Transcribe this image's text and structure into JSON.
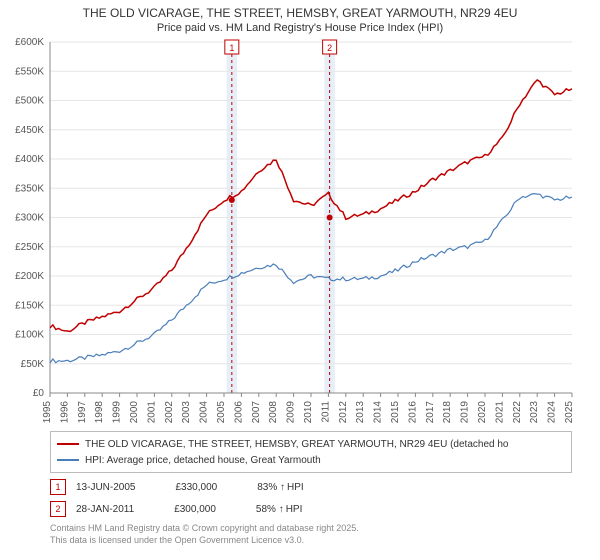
{
  "title_line1": "THE OLD VICARAGE, THE STREET, HEMSBY, GREAT YARMOUTH, NR29 4EU",
  "title_line2": "Price paid vs. HM Land Registry's House Price Index (HPI)",
  "chart": {
    "type": "line",
    "background_color": "#ffffff",
    "grid_color": "#e6e6e6",
    "axis_color": "#888888",
    "tick_font_size": 10,
    "x_years": [
      1995,
      1996,
      1997,
      1998,
      1999,
      2000,
      2001,
      2002,
      2003,
      2004,
      2005,
      2006,
      2007,
      2008,
      2009,
      2010,
      2011,
      2012,
      2013,
      2014,
      2015,
      2016,
      2017,
      2018,
      2019,
      2020,
      2021,
      2022,
      2023,
      2024,
      2025
    ],
    "y_min": 0,
    "y_max": 600000,
    "y_tick_step": 50000,
    "y_tick_labels": [
      "£0",
      "£50K",
      "£100K",
      "£150K",
      "£200K",
      "£250K",
      "£300K",
      "£350K",
      "£400K",
      "£450K",
      "£500K",
      "£550K",
      "£600K"
    ],
    "series": [
      {
        "name": "THE OLD VICARAGE, THE STREET, HEMSBY, GREAT YARMOUTH, NR29 4EU (detached ho",
        "color": "#c00000",
        "line_width": 1.5,
        "data": [
          115000,
          105000,
          120000,
          130000,
          140000,
          160000,
          180000,
          210000,
          255000,
          305000,
          330000,
          345000,
          380000,
          400000,
          330000,
          320000,
          340000,
          300000,
          305000,
          315000,
          330000,
          345000,
          365000,
          380000,
          395000,
          405000,
          435000,
          495000,
          535000,
          510000,
          520000
        ]
      },
      {
        "name": "HPI: Average price, detached house, Great Yarmouth",
        "color": "#4a7ebb",
        "line_width": 1.2,
        "data": [
          55000,
          55000,
          60000,
          65000,
          72000,
          85000,
          100000,
          125000,
          155000,
          185000,
          195000,
          205000,
          215000,
          220000,
          190000,
          200000,
          195000,
          195000,
          195000,
          200000,
          210000,
          225000,
          235000,
          245000,
          250000,
          260000,
          295000,
          335000,
          340000,
          330000,
          335000
        ]
      }
    ],
    "markers": [
      {
        "n": 1,
        "x_year": 2005.45,
        "date": "13-JUN-2005",
        "price": 330000,
        "price_label": "£330,000",
        "pct_label": "83%",
        "suffix": "HPI",
        "marker_color": "#c00000",
        "band_color": "#dbe7f3"
      },
      {
        "n": 2,
        "x_year": 2011.07,
        "date": "28-JAN-2011",
        "price": 300000,
        "price_label": "£300,000",
        "pct_label": "58%",
        "suffix": "HPI",
        "marker_color": "#c00000",
        "band_color": "#dbe7f3"
      }
    ],
    "band_width_years": 0.6,
    "marker_box_size": 14,
    "point_radius": 3
  },
  "attribution_line1": "Contains HM Land Registry data © Crown copyright and database right 2025.",
  "attribution_line2": "This data is licensed under the Open Government Licence v3.0."
}
